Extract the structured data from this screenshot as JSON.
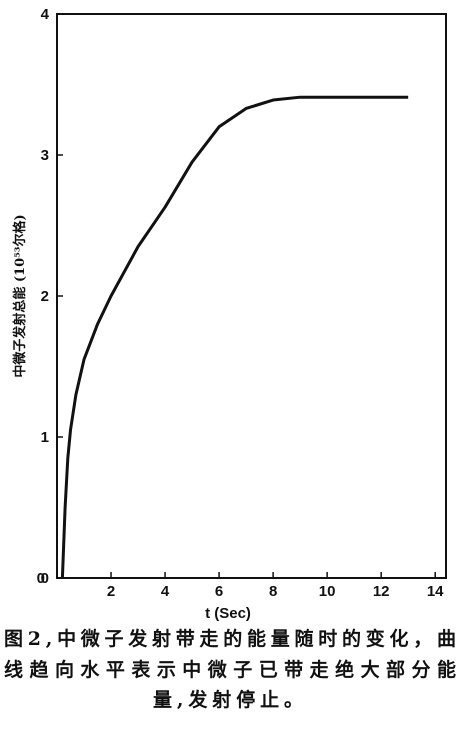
{
  "chart_data": {
    "type": "line",
    "ylabel": "中微子发射总能 (10⁵³尔格)",
    "xlabel": "t (Sec)",
    "x": [
      0.2,
      0.3,
      0.4,
      0.5,
      0.7,
      1,
      1.5,
      2,
      3,
      4,
      5,
      6,
      7,
      8,
      9,
      10,
      11,
      12,
      13
    ],
    "series": [
      {
        "color": "#111111",
        "values": [
          0,
          0.5,
          0.85,
          1.05,
          1.3,
          1.55,
          1.8,
          2.0,
          2.35,
          2.63,
          2.95,
          3.2,
          3.33,
          3.39,
          3.41,
          3.41,
          3.41,
          3.41,
          3.41
        ]
      }
    ],
    "xlim": [
      0,
      14.4
    ],
    "ylim": [
      0,
      4
    ],
    "xticks": [
      0,
      2,
      4,
      6,
      8,
      10,
      12,
      14
    ],
    "yticks": [
      0,
      1,
      2,
      3,
      4
    ],
    "caption": [
      "图2,中微子发射带走的能量随时的变化，曲",
      "线趋向水平表示中微子已带走绝大部分能",
      "量,发射停止。"
    ]
  }
}
